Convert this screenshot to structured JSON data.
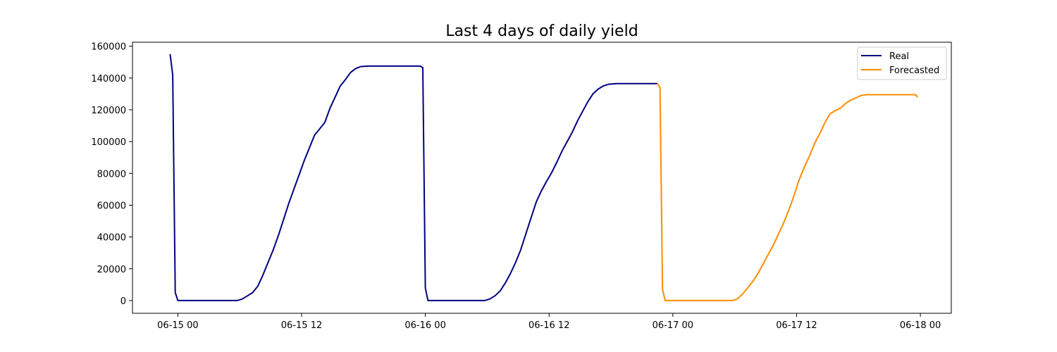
{
  "chart_data": {
    "type": "line",
    "title": "Last 4 days of daily yield",
    "xlabel": "",
    "ylabel": "",
    "x_ticks": [
      {
        "t": 0,
        "label": "06-15 00"
      },
      {
        "t": 12,
        "label": "06-15 12"
      },
      {
        "t": 24,
        "label": "06-16 00"
      },
      {
        "t": 36,
        "label": "06-16 12"
      },
      {
        "t": 48,
        "label": "06-17 00"
      },
      {
        "t": 60,
        "label": "06-17 12"
      },
      {
        "t": 72,
        "label": "06-18 00"
      }
    ],
    "y_ticks": [
      0,
      20000,
      40000,
      60000,
      80000,
      100000,
      120000,
      140000,
      160000
    ],
    "xlim": [
      -4.4,
      75.0
    ],
    "ylim": [
      -8000,
      162500
    ],
    "grid": false,
    "legend": {
      "placement": "top-right"
    },
    "series": [
      {
        "name": "Real",
        "color": "#000080",
        "points": [
          [
            -0.75,
            155000
          ],
          [
            -0.5,
            142000
          ],
          [
            -0.25,
            5000
          ],
          [
            0,
            0
          ],
          [
            4,
            0
          ],
          [
            5.75,
            0
          ],
          [
            6.25,
            1000
          ],
          [
            6.75,
            3000
          ],
          [
            7.25,
            5000
          ],
          [
            7.75,
            9000
          ],
          [
            8.25,
            16000
          ],
          [
            8.75,
            24000
          ],
          [
            9.25,
            32000
          ],
          [
            9.75,
            41000
          ],
          [
            10.25,
            51000
          ],
          [
            10.75,
            61000
          ],
          [
            11.25,
            70000
          ],
          [
            11.75,
            79000
          ],
          [
            12.25,
            88000
          ],
          [
            12.75,
            96000
          ],
          [
            13.25,
            104000
          ],
          [
            13.75,
            108000
          ],
          [
            14.25,
            112000
          ],
          [
            14.75,
            121000
          ],
          [
            15.25,
            128000
          ],
          [
            15.75,
            135000
          ],
          [
            16.25,
            139000
          ],
          [
            16.75,
            143500
          ],
          [
            17.25,
            146000
          ],
          [
            17.75,
            147200
          ],
          [
            18.5,
            147500
          ],
          [
            20,
            147500
          ],
          [
            22,
            147500
          ],
          [
            23.5,
            147500
          ],
          [
            23.75,
            146500
          ],
          [
            24,
            8000
          ],
          [
            24.25,
            0
          ],
          [
            28,
            0
          ],
          [
            29.75,
            0
          ],
          [
            30.25,
            1000
          ],
          [
            30.75,
            3000
          ],
          [
            31.25,
            6000
          ],
          [
            31.75,
            11000
          ],
          [
            32.25,
            17000
          ],
          [
            32.75,
            24000
          ],
          [
            33.25,
            32000
          ],
          [
            33.75,
            42000
          ],
          [
            34.25,
            52000
          ],
          [
            34.75,
            62000
          ],
          [
            35.25,
            69000
          ],
          [
            35.75,
            75000
          ],
          [
            36.25,
            80500
          ],
          [
            36.75,
            87000
          ],
          [
            37.25,
            94000
          ],
          [
            37.75,
            100000
          ],
          [
            38.25,
            106000
          ],
          [
            38.75,
            113000
          ],
          [
            39.25,
            119000
          ],
          [
            39.75,
            125000
          ],
          [
            40.25,
            130000
          ],
          [
            40.75,
            133000
          ],
          [
            41.25,
            135000
          ],
          [
            41.75,
            136000
          ],
          [
            42.5,
            136500
          ],
          [
            44,
            136500
          ],
          [
            46.5,
            136500
          ]
        ]
      },
      {
        "name": "Forecasted",
        "color": "#ff8c00",
        "points": [
          [
            46.5,
            136500
          ],
          [
            46.75,
            134000
          ],
          [
            47,
            7000
          ],
          [
            47.25,
            0
          ],
          [
            50,
            0
          ],
          [
            53.75,
            0
          ],
          [
            54.25,
            1000
          ],
          [
            54.75,
            4000
          ],
          [
            55.25,
            8000
          ],
          [
            55.75,
            12000
          ],
          [
            56.25,
            17000
          ],
          [
            56.75,
            23000
          ],
          [
            57.25,
            29000
          ],
          [
            57.75,
            35000
          ],
          [
            58.25,
            42000
          ],
          [
            58.75,
            49000
          ],
          [
            59.25,
            57000
          ],
          [
            59.75,
            66000
          ],
          [
            60.25,
            76000
          ],
          [
            60.75,
            84000
          ],
          [
            61.25,
            91000
          ],
          [
            61.75,
            99000
          ],
          [
            62.25,
            105000
          ],
          [
            62.75,
            112000
          ],
          [
            63.25,
            117500
          ],
          [
            63.75,
            119500
          ],
          [
            64.25,
            121000
          ],
          [
            64.75,
            124000
          ],
          [
            65.25,
            126000
          ],
          [
            65.75,
            127500
          ],
          [
            66.25,
            129000
          ],
          [
            66.75,
            129500
          ],
          [
            68,
            129500
          ],
          [
            70,
            129500
          ],
          [
            71.25,
            129500
          ],
          [
            71.5,
            129500
          ],
          [
            71.75,
            128000
          ]
        ]
      }
    ]
  }
}
